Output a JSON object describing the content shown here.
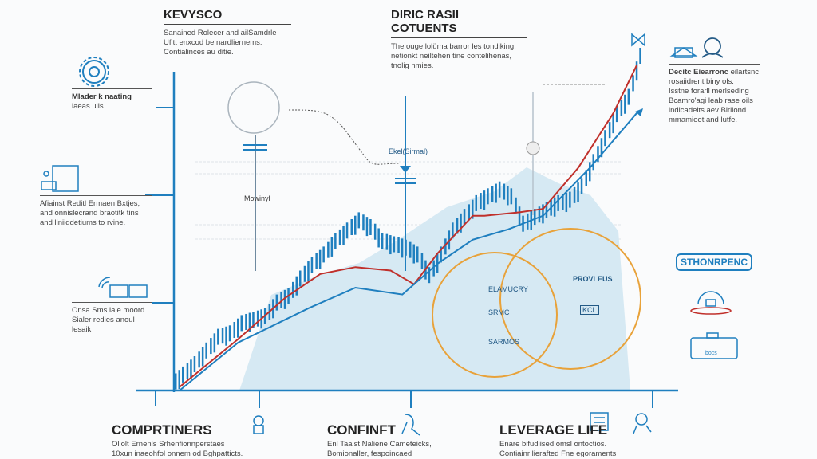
{
  "top_left": {
    "title": "KEVYSCO",
    "lines": [
      "Sanained Rolecer and ailSamdrle",
      "Ufitt enxcod be nardliernems:",
      "Contialinces au ditie."
    ]
  },
  "top_center": {
    "title": "DIRIC RASII COTUENTS",
    "lines": [
      "The ouge lolüma barror les tondiking:",
      "netionkt neiltehen tine contelihenas,",
      "tnolig nmies."
    ]
  },
  "left_items": [
    {
      "icon": "gear-icon",
      "lines": [
        "Mlader k naating",
        "laeas uils."
      ]
    },
    {
      "icon": "workstation-icon",
      "lines": [
        "Afiainst Reditl Ermaen Bxtjes,",
        "and onnislecrand braotitk tins",
        "and liniiddetiums to rvine."
      ]
    },
    {
      "icon": "signal-book-icon",
      "lines": [
        "Onsa Sms lale moord",
        "Sialer redies anoul lesaik"
      ]
    }
  ],
  "right_item": {
    "title": "Decitc Eiearronc",
    "lines": [
      "eilartsnc",
      "rosaiidrent biny ols.",
      "Isstne forarll merlsedlng",
      "Bcamro'agi leab rase oils",
      "indicadeits aev Birliond",
      "mmamieet and lutfe."
    ]
  },
  "right_badge": {
    "label": "STHONRPENC",
    "sub": "bocs"
  },
  "chart_labels": {
    "callout": "Ekel(Sirmal)",
    "mid_label": "Mowinyl",
    "circle_a": [
      "ELAMUCRY",
      "SRMC",
      "SARMOS"
    ],
    "circle_b": "PROVLEUS",
    "circle_b_tag": "KCL"
  },
  "bottom": [
    {
      "title": "COMPRTINERS",
      "lines": [
        "Ollolt Ernenls Srhenfionnperstaes",
        "10xun inaeohfol onnem od Bghpatticts."
      ]
    },
    {
      "title": "CONFINFT",
      "lines": [
        "Enl Taaist Naliene Cameteicks,",
        "Bomionaller, fespoincaed"
      ]
    },
    {
      "title": "LEVERAGE LIFE",
      "lines": [
        "Enare bifudiised omsl ontoctios.",
        "Contiainr lierafted Fne egoraments"
      ]
    }
  ],
  "colors": {
    "blue": "#1f7fbf",
    "red": "#c0302b",
    "orange": "#e8a23a",
    "area": "#d6e9f3"
  },
  "chart_data": {
    "type": "line",
    "title": "",
    "xlabel": "",
    "ylabel": "",
    "ylim": [
      0,
      100
    ],
    "price": [
      5,
      8,
      12,
      16,
      17,
      20,
      21,
      22,
      26,
      28,
      33,
      37,
      40,
      44,
      47,
      50,
      48,
      44,
      43,
      42,
      40,
      34,
      40,
      47,
      51,
      55,
      57,
      59,
      57,
      49,
      51,
      53,
      55,
      56,
      60,
      67,
      74,
      81,
      86,
      98
    ],
    "series": [
      {
        "name": "red-trend",
        "points": [
          [
            0,
            1
          ],
          [
            5,
            15
          ],
          [
            9,
            27
          ],
          [
            12,
            34
          ],
          [
            15,
            36
          ],
          [
            18,
            35
          ],
          [
            20,
            31
          ],
          [
            22,
            40
          ],
          [
            25,
            51
          ],
          [
            26,
            51
          ],
          [
            29,
            52
          ],
          [
            31,
            53
          ],
          [
            34,
            65
          ],
          [
            37,
            81
          ],
          [
            39,
            95
          ]
        ]
      },
      {
        "name": "blue-trend",
        "points": [
          [
            0,
            0
          ],
          [
            5,
            14
          ],
          [
            11,
            24
          ],
          [
            15,
            30
          ],
          [
            19,
            28
          ],
          [
            22,
            37
          ],
          [
            25,
            44
          ],
          [
            28,
            47
          ],
          [
            31,
            51
          ],
          [
            35,
            65
          ],
          [
            39,
            81
          ]
        ]
      }
    ]
  }
}
